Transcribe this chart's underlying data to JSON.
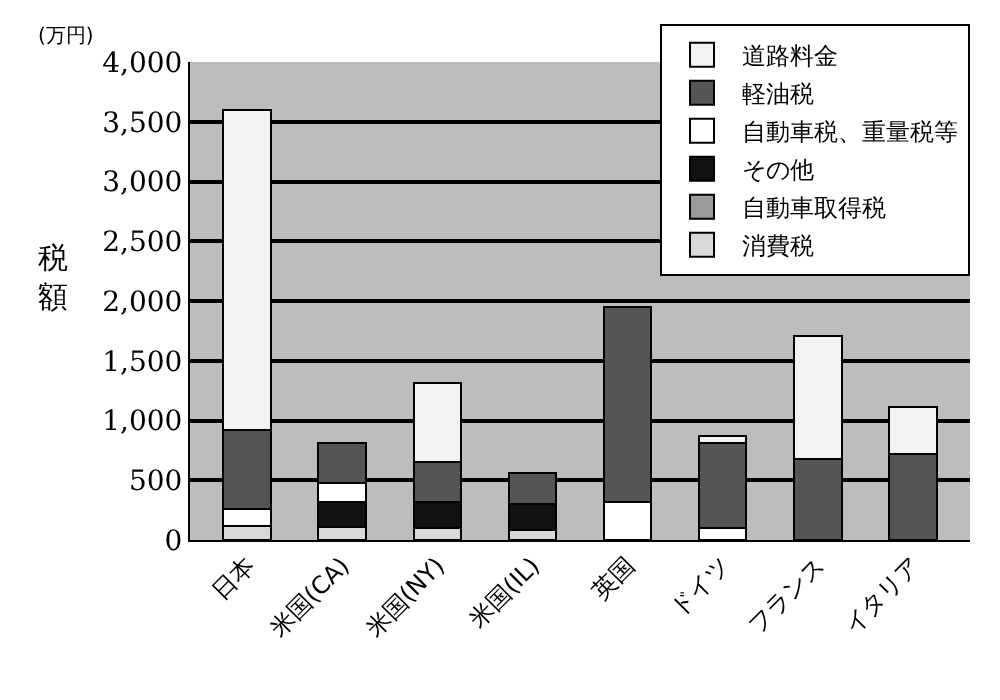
{
  "chart_data": {
    "type": "bar",
    "stacked": true,
    "ylabel": "税額",
    "annotations": [
      "(万円)"
    ],
    "categories": [
      "日本",
      "米国(CA)",
      "米国(NY)",
      "米国(IL)",
      "英国",
      "ドイツ",
      "フランス",
      "イタリア"
    ],
    "series": [
      {
        "name": "消費税",
        "color": "#d9d9d9",
        "values": [
          120,
          110,
          100,
          80,
          null,
          null,
          null,
          null
        ]
      },
      {
        "name": "自動車取得税",
        "color": "#9a9a9a",
        "values": [
          null,
          null,
          null,
          null,
          null,
          null,
          null,
          null
        ]
      },
      {
        "name": "その他",
        "color": "#111111",
        "values": [
          null,
          210,
          220,
          220,
          null,
          null,
          null,
          null
        ]
      },
      {
        "name": "自動車税、重量税等",
        "color": "#ffffff",
        "values": [
          140,
          160,
          null,
          null,
          320,
          100,
          null,
          null
        ]
      },
      {
        "name": "軽油税",
        "color": "#555555",
        "values": [
          660,
          330,
          330,
          260,
          1630,
          710,
          680,
          720
        ]
      },
      {
        "name": "道路料金",
        "color": "#f2f2f2",
        "values": [
          2680,
          null,
          660,
          null,
          null,
          60,
          1030,
          390
        ]
      }
    ],
    "ylim": [
      0,
      4000
    ],
    "yticks": [
      0,
      500,
      {
        "value": 1000,
        "label": "1,000"
      },
      {
        "value": 1500,
        "label": "1,500"
      },
      {
        "value": 2000,
        "label": "2,000"
      },
      {
        "value": 2500,
        "label": "2,500"
      },
      {
        "value": 3000,
        "label": "3,000"
      },
      {
        "value": 3500,
        "label": "3,500"
      },
      {
        "value": 4000,
        "label": "4,000"
      }
    ],
    "grid": "y",
    "legend": "top right"
  }
}
